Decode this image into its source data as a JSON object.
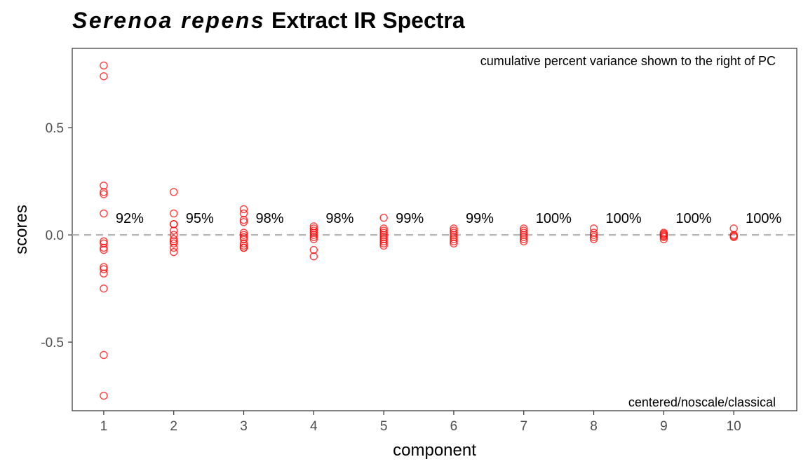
{
  "chart_data": {
    "type": "scatter",
    "title_italic": "Serenoa repens",
    "title_rest": "Extract IR Spectra",
    "xlabel": "component",
    "ylabel": "scores",
    "x_ticks": [
      1,
      2,
      3,
      4,
      5,
      6,
      7,
      8,
      9,
      10
    ],
    "y_ticks": [
      0.5,
      0.0,
      -0.5
    ],
    "y_tick_labels": [
      "0.5",
      "0.0",
      "-0.5"
    ],
    "xlim": [
      0.55,
      10.9
    ],
    "ylim": [
      -0.82,
      0.87
    ],
    "reference_line_y": 0.0,
    "grid": false,
    "point_color": "#ff0000",
    "reference_line_color": "#b3b3b3",
    "annotation_top_right": "cumulative percent variance shown to the right of PC",
    "annotation_bottom_right": "centered/noscale/classical",
    "cumulative_variance_labels": [
      "92%",
      "95%",
      "98%",
      "98%",
      "99%",
      "99%",
      "100%",
      "100%",
      "100%",
      "100%"
    ],
    "scores": [
      {
        "component": 1,
        "values": [
          0.79,
          0.74,
          0.23,
          0.2,
          0.19,
          0.1,
          -0.03,
          -0.04,
          -0.06,
          -0.07,
          -0.15,
          -0.16,
          -0.18,
          -0.25,
          -0.56,
          -0.75
        ]
      },
      {
        "component": 2,
        "values": [
          0.2,
          0.1,
          0.05,
          0.05,
          0.02,
          0.0,
          -0.02,
          -0.03,
          -0.04,
          -0.06,
          -0.08
        ]
      },
      {
        "component": 3,
        "values": [
          0.12,
          0.1,
          0.07,
          0.06,
          0.01,
          0.0,
          -0.01,
          -0.02,
          -0.04,
          -0.05,
          -0.06,
          -0.06
        ]
      },
      {
        "component": 4,
        "values": [
          0.04,
          0.03,
          0.02,
          0.01,
          0.0,
          -0.01,
          -0.02,
          -0.07,
          -0.1
        ]
      },
      {
        "component": 5,
        "values": [
          0.08,
          0.03,
          0.02,
          0.01,
          0.0,
          -0.01,
          -0.02,
          -0.03,
          -0.04,
          -0.05
        ]
      },
      {
        "component": 6,
        "values": [
          0.03,
          0.02,
          0.01,
          0.0,
          -0.01,
          -0.02,
          -0.03,
          -0.04
        ]
      },
      {
        "component": 7,
        "values": [
          0.03,
          0.02,
          0.01,
          0.0,
          -0.01,
          -0.02,
          -0.03
        ]
      },
      {
        "component": 8,
        "values": [
          0.03,
          0.01,
          0.0,
          -0.01,
          -0.02
        ]
      },
      {
        "component": 9,
        "values": [
          0.01,
          0.005,
          0.0,
          -0.005,
          -0.01,
          -0.02
        ]
      },
      {
        "component": 10,
        "values": [
          0.03,
          0.0,
          -0.005,
          -0.01
        ]
      }
    ]
  }
}
